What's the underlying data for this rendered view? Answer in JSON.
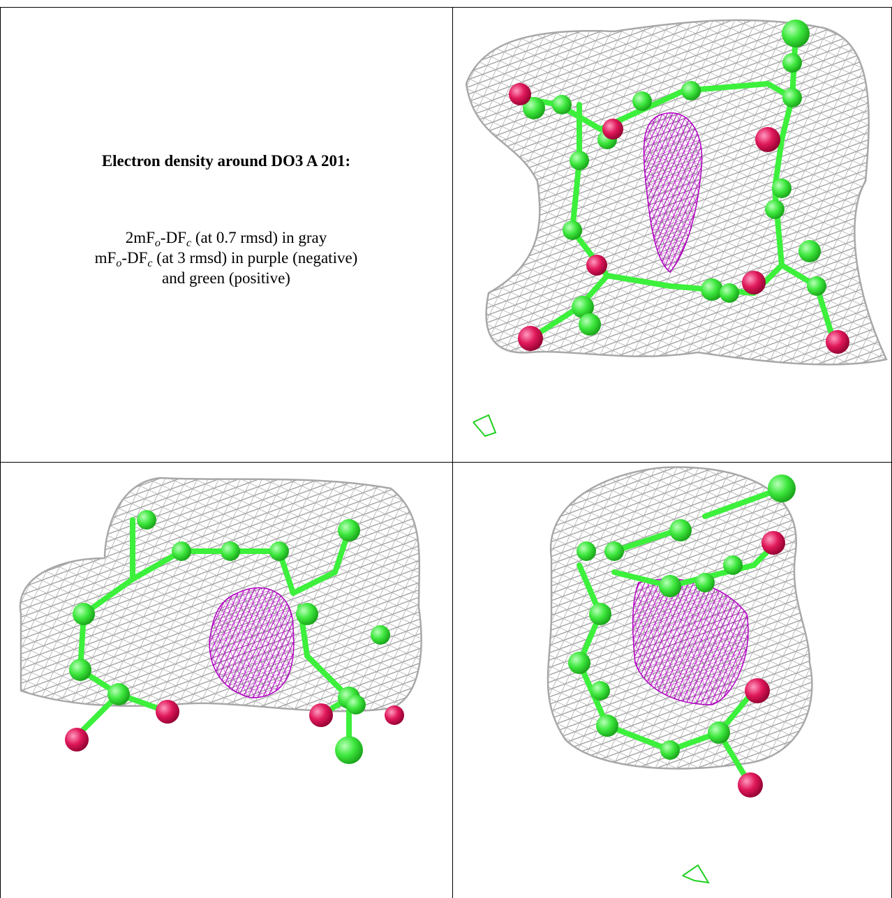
{
  "caption": {
    "title": "Electron density around DO3 A 201:",
    "lines": [
      [
        {
          "text": "2mF"
        },
        {
          "sub": "o"
        },
        {
          "text": "-DF"
        },
        {
          "sub": "c"
        },
        {
          "text": " (at 0.7 rmsd) in gray"
        }
      ],
      [
        {
          "text": "mF"
        },
        {
          "sub": "o"
        },
        {
          "text": "-DF"
        },
        {
          "sub": "c"
        },
        {
          "text": " (at 3 rmsd) in purple (negative)"
        }
      ],
      [
        {
          "text": "and green (positive)"
        }
      ]
    ]
  }
}
